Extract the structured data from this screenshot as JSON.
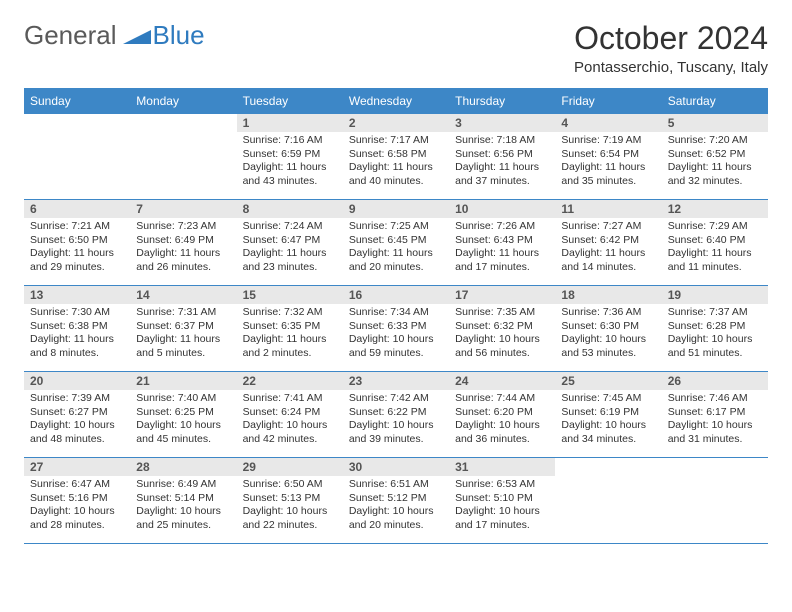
{
  "brand": {
    "part1": "General",
    "part2": "Blue"
  },
  "title": "October 2024",
  "location": "Pontasserchio, Tuscany, Italy",
  "colors": {
    "header_bg": "#3d87c7",
    "header_text": "#ffffff",
    "daynum_bg": "#e8e8e8",
    "border": "#3d87c7",
    "text": "#333333",
    "logo_gray": "#5a5a5a",
    "logo_blue": "#2f7bbf"
  },
  "typography": {
    "title_fontsize": 32,
    "location_fontsize": 15,
    "dayheader_fontsize": 12,
    "daynum_fontsize": 12,
    "cell_fontsize": 10.5
  },
  "day_headers": [
    "Sunday",
    "Monday",
    "Tuesday",
    "Wednesday",
    "Thursday",
    "Friday",
    "Saturday"
  ],
  "weeks": [
    [
      null,
      null,
      {
        "n": "1",
        "sr": "7:16 AM",
        "ss": "6:59 PM",
        "dl": "11 hours and 43 minutes."
      },
      {
        "n": "2",
        "sr": "7:17 AM",
        "ss": "6:58 PM",
        "dl": "11 hours and 40 minutes."
      },
      {
        "n": "3",
        "sr": "7:18 AM",
        "ss": "6:56 PM",
        "dl": "11 hours and 37 minutes."
      },
      {
        "n": "4",
        "sr": "7:19 AM",
        "ss": "6:54 PM",
        "dl": "11 hours and 35 minutes."
      },
      {
        "n": "5",
        "sr": "7:20 AM",
        "ss": "6:52 PM",
        "dl": "11 hours and 32 minutes."
      }
    ],
    [
      {
        "n": "6",
        "sr": "7:21 AM",
        "ss": "6:50 PM",
        "dl": "11 hours and 29 minutes."
      },
      {
        "n": "7",
        "sr": "7:23 AM",
        "ss": "6:49 PM",
        "dl": "11 hours and 26 minutes."
      },
      {
        "n": "8",
        "sr": "7:24 AM",
        "ss": "6:47 PM",
        "dl": "11 hours and 23 minutes."
      },
      {
        "n": "9",
        "sr": "7:25 AM",
        "ss": "6:45 PM",
        "dl": "11 hours and 20 minutes."
      },
      {
        "n": "10",
        "sr": "7:26 AM",
        "ss": "6:43 PM",
        "dl": "11 hours and 17 minutes."
      },
      {
        "n": "11",
        "sr": "7:27 AM",
        "ss": "6:42 PM",
        "dl": "11 hours and 14 minutes."
      },
      {
        "n": "12",
        "sr": "7:29 AM",
        "ss": "6:40 PM",
        "dl": "11 hours and 11 minutes."
      }
    ],
    [
      {
        "n": "13",
        "sr": "7:30 AM",
        "ss": "6:38 PM",
        "dl": "11 hours and 8 minutes."
      },
      {
        "n": "14",
        "sr": "7:31 AM",
        "ss": "6:37 PM",
        "dl": "11 hours and 5 minutes."
      },
      {
        "n": "15",
        "sr": "7:32 AM",
        "ss": "6:35 PM",
        "dl": "11 hours and 2 minutes."
      },
      {
        "n": "16",
        "sr": "7:34 AM",
        "ss": "6:33 PM",
        "dl": "10 hours and 59 minutes."
      },
      {
        "n": "17",
        "sr": "7:35 AM",
        "ss": "6:32 PM",
        "dl": "10 hours and 56 minutes."
      },
      {
        "n": "18",
        "sr": "7:36 AM",
        "ss": "6:30 PM",
        "dl": "10 hours and 53 minutes."
      },
      {
        "n": "19",
        "sr": "7:37 AM",
        "ss": "6:28 PM",
        "dl": "10 hours and 51 minutes."
      }
    ],
    [
      {
        "n": "20",
        "sr": "7:39 AM",
        "ss": "6:27 PM",
        "dl": "10 hours and 48 minutes."
      },
      {
        "n": "21",
        "sr": "7:40 AM",
        "ss": "6:25 PM",
        "dl": "10 hours and 45 minutes."
      },
      {
        "n": "22",
        "sr": "7:41 AM",
        "ss": "6:24 PM",
        "dl": "10 hours and 42 minutes."
      },
      {
        "n": "23",
        "sr": "7:42 AM",
        "ss": "6:22 PM",
        "dl": "10 hours and 39 minutes."
      },
      {
        "n": "24",
        "sr": "7:44 AM",
        "ss": "6:20 PM",
        "dl": "10 hours and 36 minutes."
      },
      {
        "n": "25",
        "sr": "7:45 AM",
        "ss": "6:19 PM",
        "dl": "10 hours and 34 minutes."
      },
      {
        "n": "26",
        "sr": "7:46 AM",
        "ss": "6:17 PM",
        "dl": "10 hours and 31 minutes."
      }
    ],
    [
      {
        "n": "27",
        "sr": "6:47 AM",
        "ss": "5:16 PM",
        "dl": "10 hours and 28 minutes."
      },
      {
        "n": "28",
        "sr": "6:49 AM",
        "ss": "5:14 PM",
        "dl": "10 hours and 25 minutes."
      },
      {
        "n": "29",
        "sr": "6:50 AM",
        "ss": "5:13 PM",
        "dl": "10 hours and 22 minutes."
      },
      {
        "n": "30",
        "sr": "6:51 AM",
        "ss": "5:12 PM",
        "dl": "10 hours and 20 minutes."
      },
      {
        "n": "31",
        "sr": "6:53 AM",
        "ss": "5:10 PM",
        "dl": "10 hours and 17 minutes."
      },
      null,
      null
    ]
  ],
  "labels": {
    "sunrise": "Sunrise:",
    "sunset": "Sunset:",
    "daylight": "Daylight:"
  }
}
